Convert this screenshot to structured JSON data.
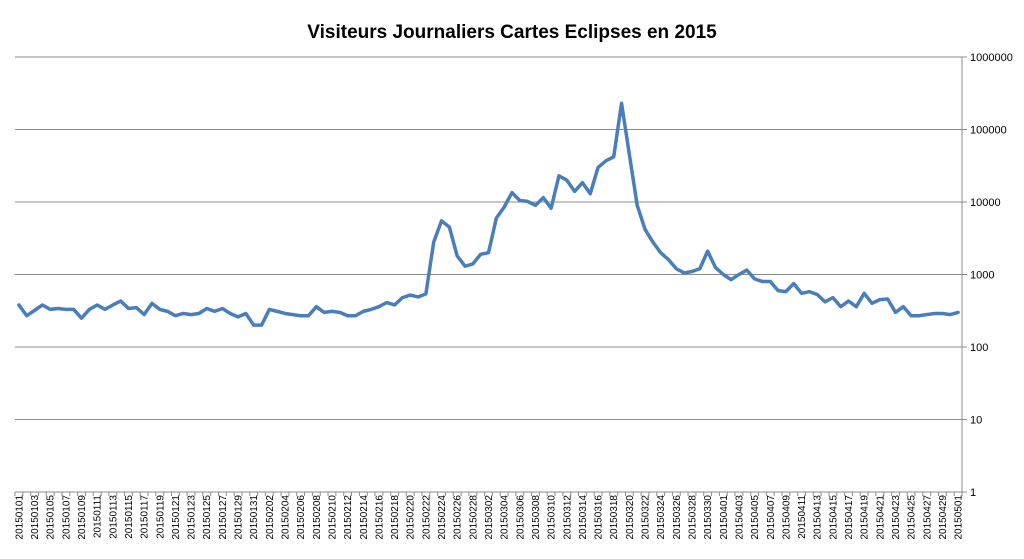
{
  "chart_data": {
    "type": "line",
    "title": "Visiteurs Journaliers Cartes Eclipses en 2015",
    "xlabel": "",
    "ylabel": "",
    "y_scale": "log",
    "ylim": [
      1,
      1000000
    ],
    "y_axis_position": "right",
    "grid": true,
    "legend": "none",
    "y_ticks": [
      "1",
      "10",
      "100",
      "1000",
      "10000",
      "100000",
      "1000000"
    ],
    "series_color": "#4a7ebb",
    "series": [
      {
        "x": [
          "20150101",
          "20150102",
          "20150103",
          "20150104",
          "20150105",
          "20150106",
          "20150107",
          "20150108",
          "20150109",
          "20150110",
          "20150111",
          "20150112",
          "20150113",
          "20150114",
          "20150115",
          "20150116",
          "20150117",
          "20150118",
          "20150119",
          "20150120",
          "20150121",
          "20150122",
          "20150123",
          "20150124",
          "20150125",
          "20150126",
          "20150127",
          "20150128",
          "20150129",
          "20150130",
          "20150131",
          "20150201",
          "20150202",
          "20150203",
          "20150204",
          "20150205",
          "20150206",
          "20150207",
          "20150208",
          "20150209",
          "20150210",
          "20150211",
          "20150212",
          "20150213",
          "20150214",
          "20150215",
          "20150216",
          "20150217",
          "20150218",
          "20150219",
          "20150220",
          "20150221",
          "20150222",
          "20150223",
          "20150224",
          "20150225",
          "20150226",
          "20150227",
          "20150228",
          "20150301",
          "20150302",
          "20150303",
          "20150304",
          "20150305",
          "20150306",
          "20150307",
          "20150308",
          "20150309",
          "20150310",
          "20150311",
          "20150312",
          "20150313",
          "20150314",
          "20150315",
          "20150316",
          "20150317",
          "20150318",
          "20150319",
          "20150320",
          "20150321",
          "20150322",
          "20150323",
          "20150324",
          "20150325",
          "20150326",
          "20150327",
          "20150328",
          "20150329",
          "20150330",
          "20150331",
          "20150401",
          "20150402",
          "20150403",
          "20150404",
          "20150405",
          "20150406",
          "20150407",
          "20150408",
          "20150409",
          "20150410",
          "20150411",
          "20150412",
          "20150413",
          "20150414",
          "20150415",
          "20150416",
          "20150417",
          "20150418",
          "20150419",
          "20150420",
          "20150421",
          "20150422",
          "20150423",
          "20150424",
          "20150425",
          "20150426",
          "20150427",
          "20150428",
          "20150429",
          "20150430",
          "20150501"
        ],
        "values": [
          380,
          270,
          320,
          380,
          330,
          340,
          330,
          330,
          250,
          330,
          380,
          330,
          380,
          430,
          340,
          350,
          280,
          400,
          330,
          310,
          270,
          290,
          280,
          290,
          340,
          310,
          340,
          290,
          260,
          290,
          200,
          200,
          330,
          310,
          290,
          280,
          270,
          270,
          360,
          300,
          310,
          300,
          270,
          270,
          310,
          330,
          360,
          410,
          380,
          480,
          520,
          490,
          540,
          2800,
          5500,
          4500,
          1800,
          1300,
          1400,
          1900,
          2000,
          6000,
          8500,
          13500,
          10500,
          10200,
          9000,
          11500,
          8200,
          23000,
          20000,
          14000,
          18500,
          13000,
          30000,
          37000,
          42000,
          230000,
          45000,
          9000,
          4200,
          2800,
          2000,
          1600,
          1200,
          1050,
          1100,
          1200,
          2100,
          1250,
          1000,
          850,
          1000,
          1150,
          870,
          800,
          800,
          600,
          580,
          750,
          550,
          580,
          530,
          420,
          480,
          360,
          430,
          360,
          550,
          400,
          450,
          460,
          300,
          360,
          270,
          270,
          280,
          290,
          290,
          280,
          300
        ]
      }
    ]
  }
}
